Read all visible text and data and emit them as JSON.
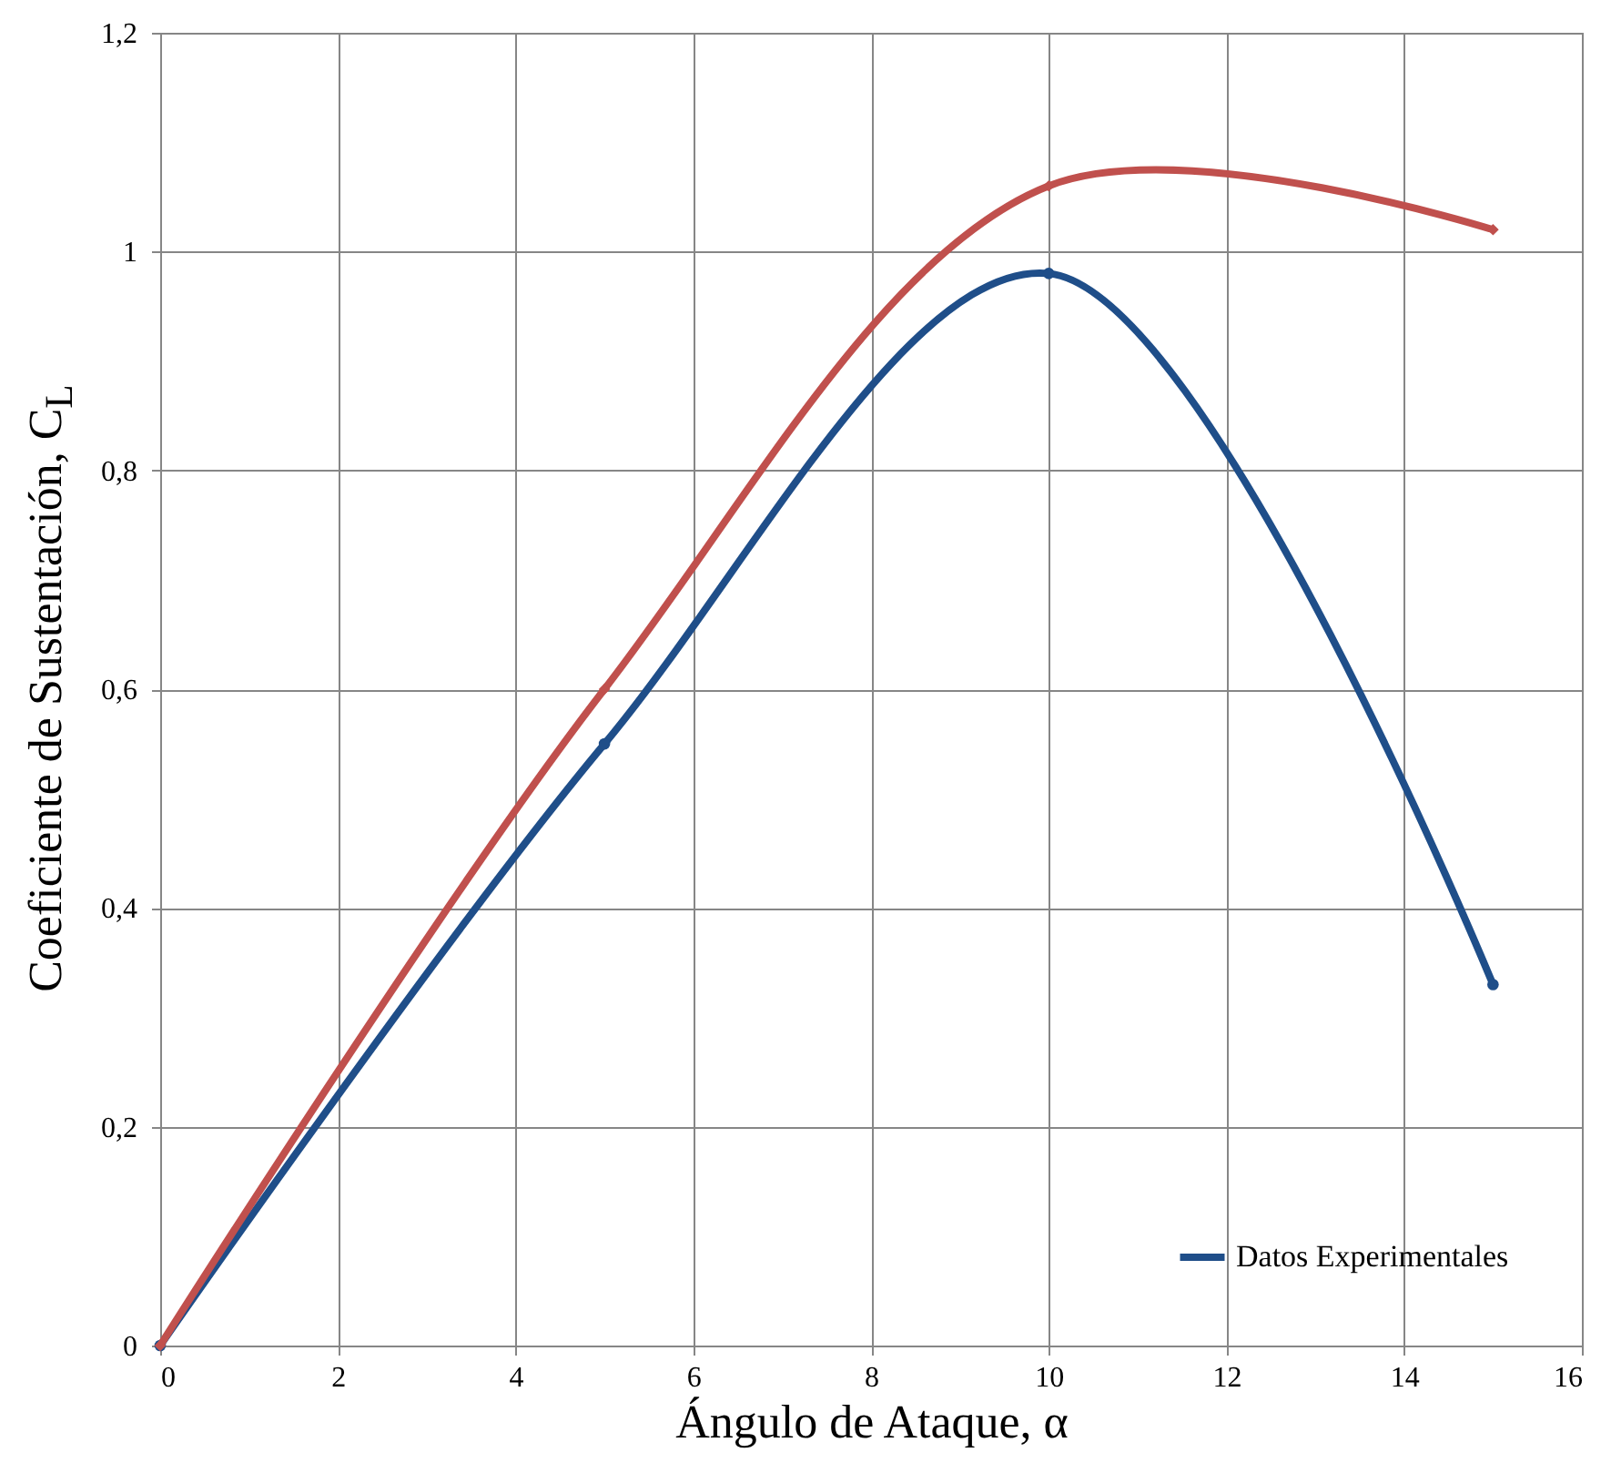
{
  "chart_data": {
    "type": "line",
    "xlabel": "Ángulo de Ataque, α",
    "ylabel": "Coeficiente de Sustentación, C$_{L}$",
    "x": [
      0,
      5,
      10,
      15
    ],
    "series": [
      {
        "name": "Datos Experimentales",
        "color": "#1f4e89",
        "values": [
          0,
          0.55,
          0.98,
          0.33
        ],
        "marker": "circle"
      },
      {
        "color": "#c0504d",
        "values": [
          0,
          0.6,
          1.06,
          1.02
        ],
        "marker": "diamond"
      }
    ],
    "xlim": [
      0,
      16
    ],
    "xticks": [
      0,
      2,
      4,
      6,
      8,
      10,
      12,
      14,
      16
    ],
    "ylim": [
      0,
      1.2
    ],
    "yticks": [
      0,
      {
        "value": 0.2,
        "label": "0,2"
      },
      {
        "value": 0.4,
        "label": "0,4"
      },
      {
        "value": 0.6,
        "label": "0,6"
      },
      {
        "value": 0.8,
        "label": "0,8"
      },
      1,
      {
        "value": 1.2,
        "label": "1,2"
      }
    ],
    "grid": true,
    "legend": "bottom right",
    "line_style": "solid"
  }
}
